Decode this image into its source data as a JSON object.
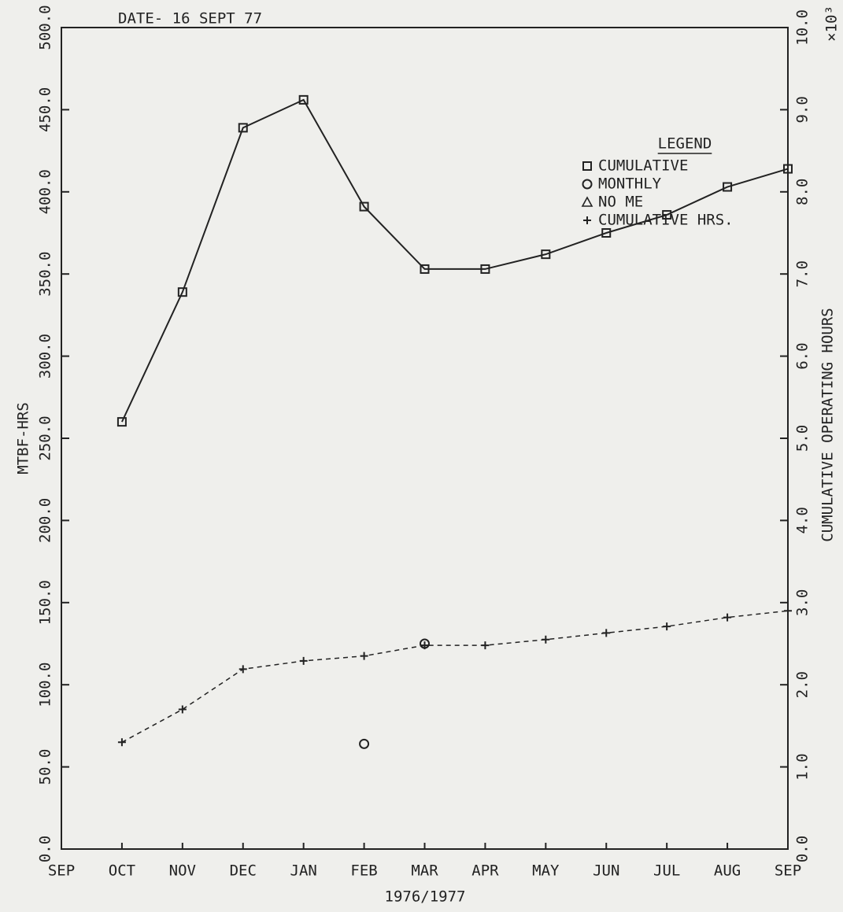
{
  "chart_data": {
    "type": "line",
    "annotation": "DATE- 16 SEPT 77",
    "x_label": "1976/1977",
    "y_label": "MTBF-HRS",
    "y2_label": "CUMULATIVE OPERATING HOURS",
    "y2_multiplier": "×10³",
    "legend_title": "LEGEND",
    "legend": "upper right",
    "color": "#222222",
    "categories": [
      "SEP",
      "OCT",
      "NOV",
      "DEC",
      "JAN",
      "FEB",
      "MAR",
      "APR",
      "MAY",
      "JUN",
      "JUL",
      "AUG",
      "SEP"
    ],
    "ylim": [
      0,
      500
    ],
    "yticks": [
      {
        "value": 0,
        "label": "0.0"
      },
      {
        "value": 50,
        "label": "50.0"
      },
      {
        "value": 100,
        "label": "100.0"
      },
      {
        "value": 150,
        "label": "150.0"
      },
      {
        "value": 200,
        "label": "200.0"
      },
      {
        "value": 250,
        "label": "250.0"
      },
      {
        "value": 300,
        "label": "300.0"
      },
      {
        "value": 350,
        "label": "350.0"
      },
      {
        "value": 400,
        "label": "400.0"
      },
      {
        "value": 450,
        "label": "450.0"
      },
      {
        "value": 500,
        "label": "500.0"
      }
    ],
    "y2lim": [
      0,
      10
    ],
    "y2ticks": [
      {
        "value": 0,
        "label": "0.0"
      },
      {
        "value": 1,
        "label": "1.0"
      },
      {
        "value": 2,
        "label": "2.0"
      },
      {
        "value": 3,
        "label": "3.0"
      },
      {
        "value": 4,
        "label": "4.0"
      },
      {
        "value": 5,
        "label": "5.0"
      },
      {
        "value": 6,
        "label": "6.0"
      },
      {
        "value": 7,
        "label": "7.0"
      },
      {
        "value": 8,
        "label": "8.0"
      },
      {
        "value": 9,
        "label": "9.0"
      },
      {
        "value": 10,
        "label": "10.0"
      }
    ],
    "series": [
      {
        "name": "CUMULATIVE",
        "marker": "square",
        "line": "solid",
        "values": [
          null,
          260,
          339,
          439,
          456,
          391,
          353,
          353,
          362,
          375,
          386,
          403,
          414
        ]
      },
      {
        "name": "MONTHLY",
        "marker": "circle",
        "line": "none",
        "values": [
          null,
          null,
          null,
          null,
          null,
          64,
          125,
          null,
          null,
          null,
          null,
          null,
          null
        ]
      },
      {
        "name": "NO ME",
        "marker": "triangle",
        "line": "none",
        "values": [
          null,
          null,
          null,
          null,
          null,
          null,
          null,
          null,
          null,
          null,
          null,
          null,
          null
        ]
      },
      {
        "name": "CUMULATIVE HRS.",
        "marker": "plus",
        "line": "dashed",
        "axis": "y2",
        "values": [
          null,
          1.3,
          1.7,
          2.19,
          2.29,
          2.35,
          2.48,
          2.48,
          2.55,
          2.63,
          2.71,
          2.82,
          2.9
        ]
      }
    ]
  }
}
